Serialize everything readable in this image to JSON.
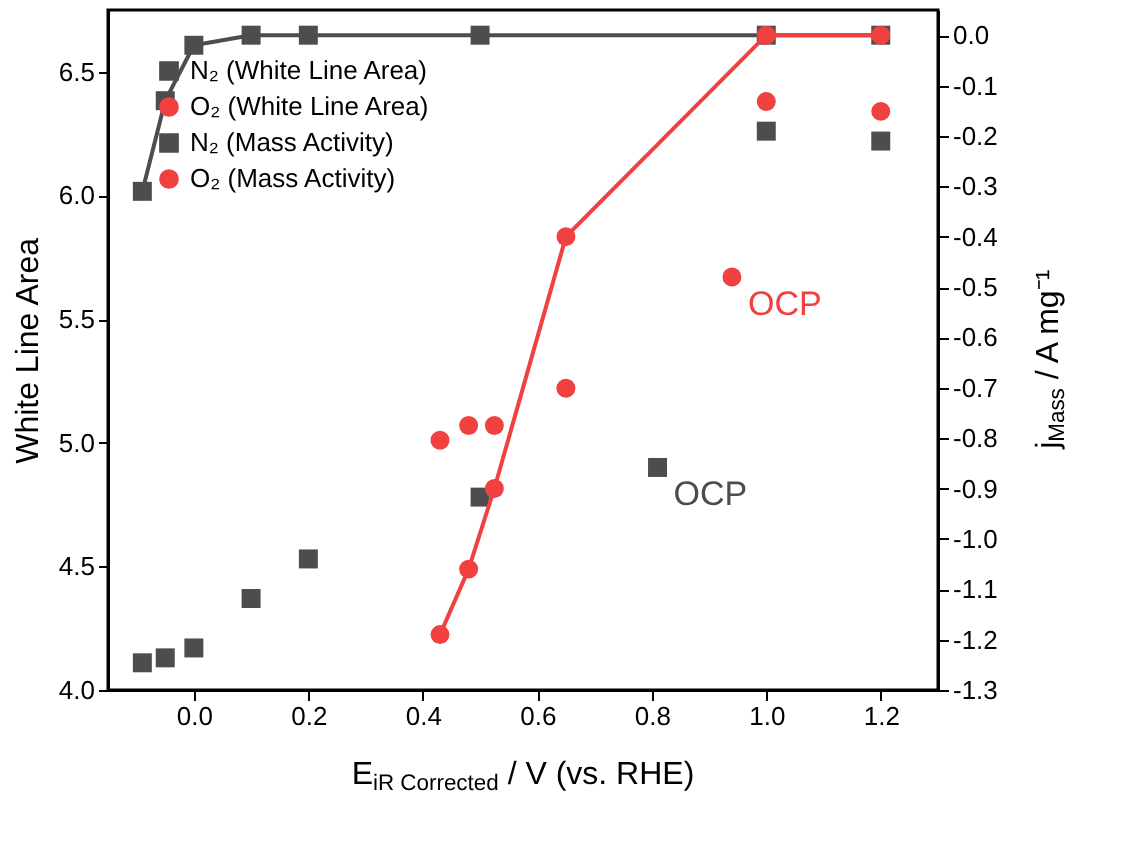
{
  "chart_data": {
    "type": "scatter",
    "xlabel": "E$_{iR Corrected}$ / V (vs. RHE)",
    "ylabel": "White Line Area",
    "y2label": "j$_{Mass}$ / A mg⁻¹",
    "xlim": [
      -0.15,
      1.3
    ],
    "xticks": [
      {
        "value": 0,
        "label": "0.0"
      },
      {
        "value": 0.2,
        "label": "0.2"
      },
      {
        "value": 0.4,
        "label": "0.4"
      },
      {
        "value": 0.6,
        "label": "0.6"
      },
      {
        "value": 0.8,
        "label": "0.8"
      },
      {
        "value": 1,
        "label": "1.0"
      },
      {
        "value": 1.2,
        "label": "1.2"
      }
    ],
    "ylim": [
      4.0,
      6.75
    ],
    "yticks": [
      {
        "value": 4,
        "label": "4.0"
      },
      {
        "value": 4.5,
        "label": "4.5"
      },
      {
        "value": 5,
        "label": "5.0"
      },
      {
        "value": 5.5,
        "label": "5.5"
      },
      {
        "value": 6,
        "label": "6.0"
      },
      {
        "value": 6.5,
        "label": "6.5"
      }
    ],
    "y2lim": [
      -1.3,
      0.05
    ],
    "y2ticks": [
      {
        "value": -1.3,
        "label": "-1.3"
      },
      {
        "value": -1.2,
        "label": "-1.2"
      },
      {
        "value": -1.1,
        "label": "-1.1"
      },
      {
        "value": -1,
        "label": "-1.0"
      },
      {
        "value": -0.9,
        "label": "-0.9"
      },
      {
        "value": -0.8,
        "label": "-0.8"
      },
      {
        "value": -0.7,
        "label": "-0.7"
      },
      {
        "value": -0.6,
        "label": "-0.6"
      },
      {
        "value": -0.5,
        "label": "-0.5"
      },
      {
        "value": -0.4,
        "label": "-0.4"
      },
      {
        "value": -0.3,
        "label": "-0.3"
      },
      {
        "value": -0.2,
        "label": "-0.2"
      },
      {
        "value": -0.1,
        "label": "-0.1"
      },
      {
        "value": 0,
        "label": "0.0"
      }
    ],
    "grid": false,
    "legend": "top left",
    "series": [
      {
        "name": "N₂ (White Line Area)",
        "marker": "square",
        "color": "#4d4d4d",
        "x": [
          -0.09,
          -0.05,
          0.0,
          0.1,
          0.2,
          0.5,
          0.81,
          1.0,
          1.2
        ],
        "values": [
          4.11,
          4.13,
          4.17,
          4.37,
          4.53,
          4.78,
          4.9,
          6.26,
          6.22
        ]
      },
      {
        "name": "O₂ (White Line Area)",
        "marker": "circle",
        "color": "#f04040",
        "x": [
          0.43,
          0.48,
          0.525,
          0.65,
          0.94,
          1.0,
          1.2
        ],
        "values": [
          5.01,
          5.07,
          5.07,
          5.22,
          5.67,
          6.38,
          6.34
        ]
      },
      {
        "name": "N₂ (Mass Activity)",
        "type": "line",
        "marker": "square",
        "axis": "y2",
        "color": "#4d4d4d",
        "x": [
          -0.09,
          -0.05,
          0.0,
          0.1,
          0.2,
          0.5,
          1.0,
          1.2
        ],
        "values": [
          -0.31,
          -0.13,
          -0.02,
          0.0,
          0.0,
          0.0,
          0.0,
          0.0
        ]
      },
      {
        "name": "O₂ (Mass Activity)",
        "type": "line",
        "marker": "circle",
        "axis": "y2",
        "color": "#f04040",
        "x": [
          1.2,
          1.0,
          0.65,
          0.525,
          0.48,
          0.43
        ],
        "values": [
          0.0,
          0.0,
          -0.4,
          -0.9,
          -1.06,
          -1.19
        ]
      }
    ],
    "annotations": [
      {
        "text": "OCP",
        "x": 0.94,
        "y": 5.67
      },
      {
        "text": "OCP",
        "x": 0.81,
        "y": 4.9
      }
    ]
  }
}
